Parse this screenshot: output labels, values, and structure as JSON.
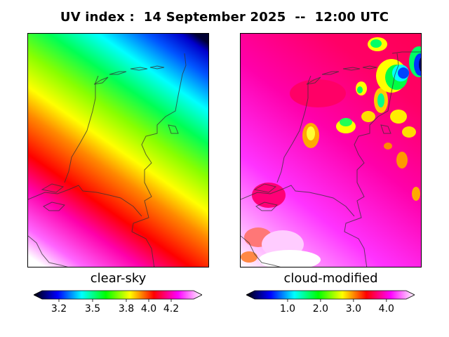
{
  "title": "UV index :  14 September 2025  --  12:00 UTC",
  "panels": [
    {
      "label": "clear-sky",
      "colorbar": {
        "min": 3.05,
        "max": 4.4,
        "ticks": [
          3.2,
          3.5,
          3.8,
          4.0,
          4.2
        ],
        "tick_labels": [
          "3.2",
          "3.5",
          "3.8",
          "4.0",
          "4.2"
        ]
      }
    },
    {
      "label": "cloud-modified",
      "colorbar": {
        "min": 0.0,
        "max": 4.6,
        "ticks": [
          1.0,
          2.0,
          3.0,
          4.0
        ],
        "tick_labels": [
          "1.0",
          "2.0",
          "3.0",
          "4.0"
        ]
      }
    }
  ],
  "colormap": [
    "#000000",
    "#0000ff",
    "#00ffff",
    "#00ff00",
    "#ffff00",
    "#ff0000",
    "#ff00ff",
    "#ffffff"
  ]
}
